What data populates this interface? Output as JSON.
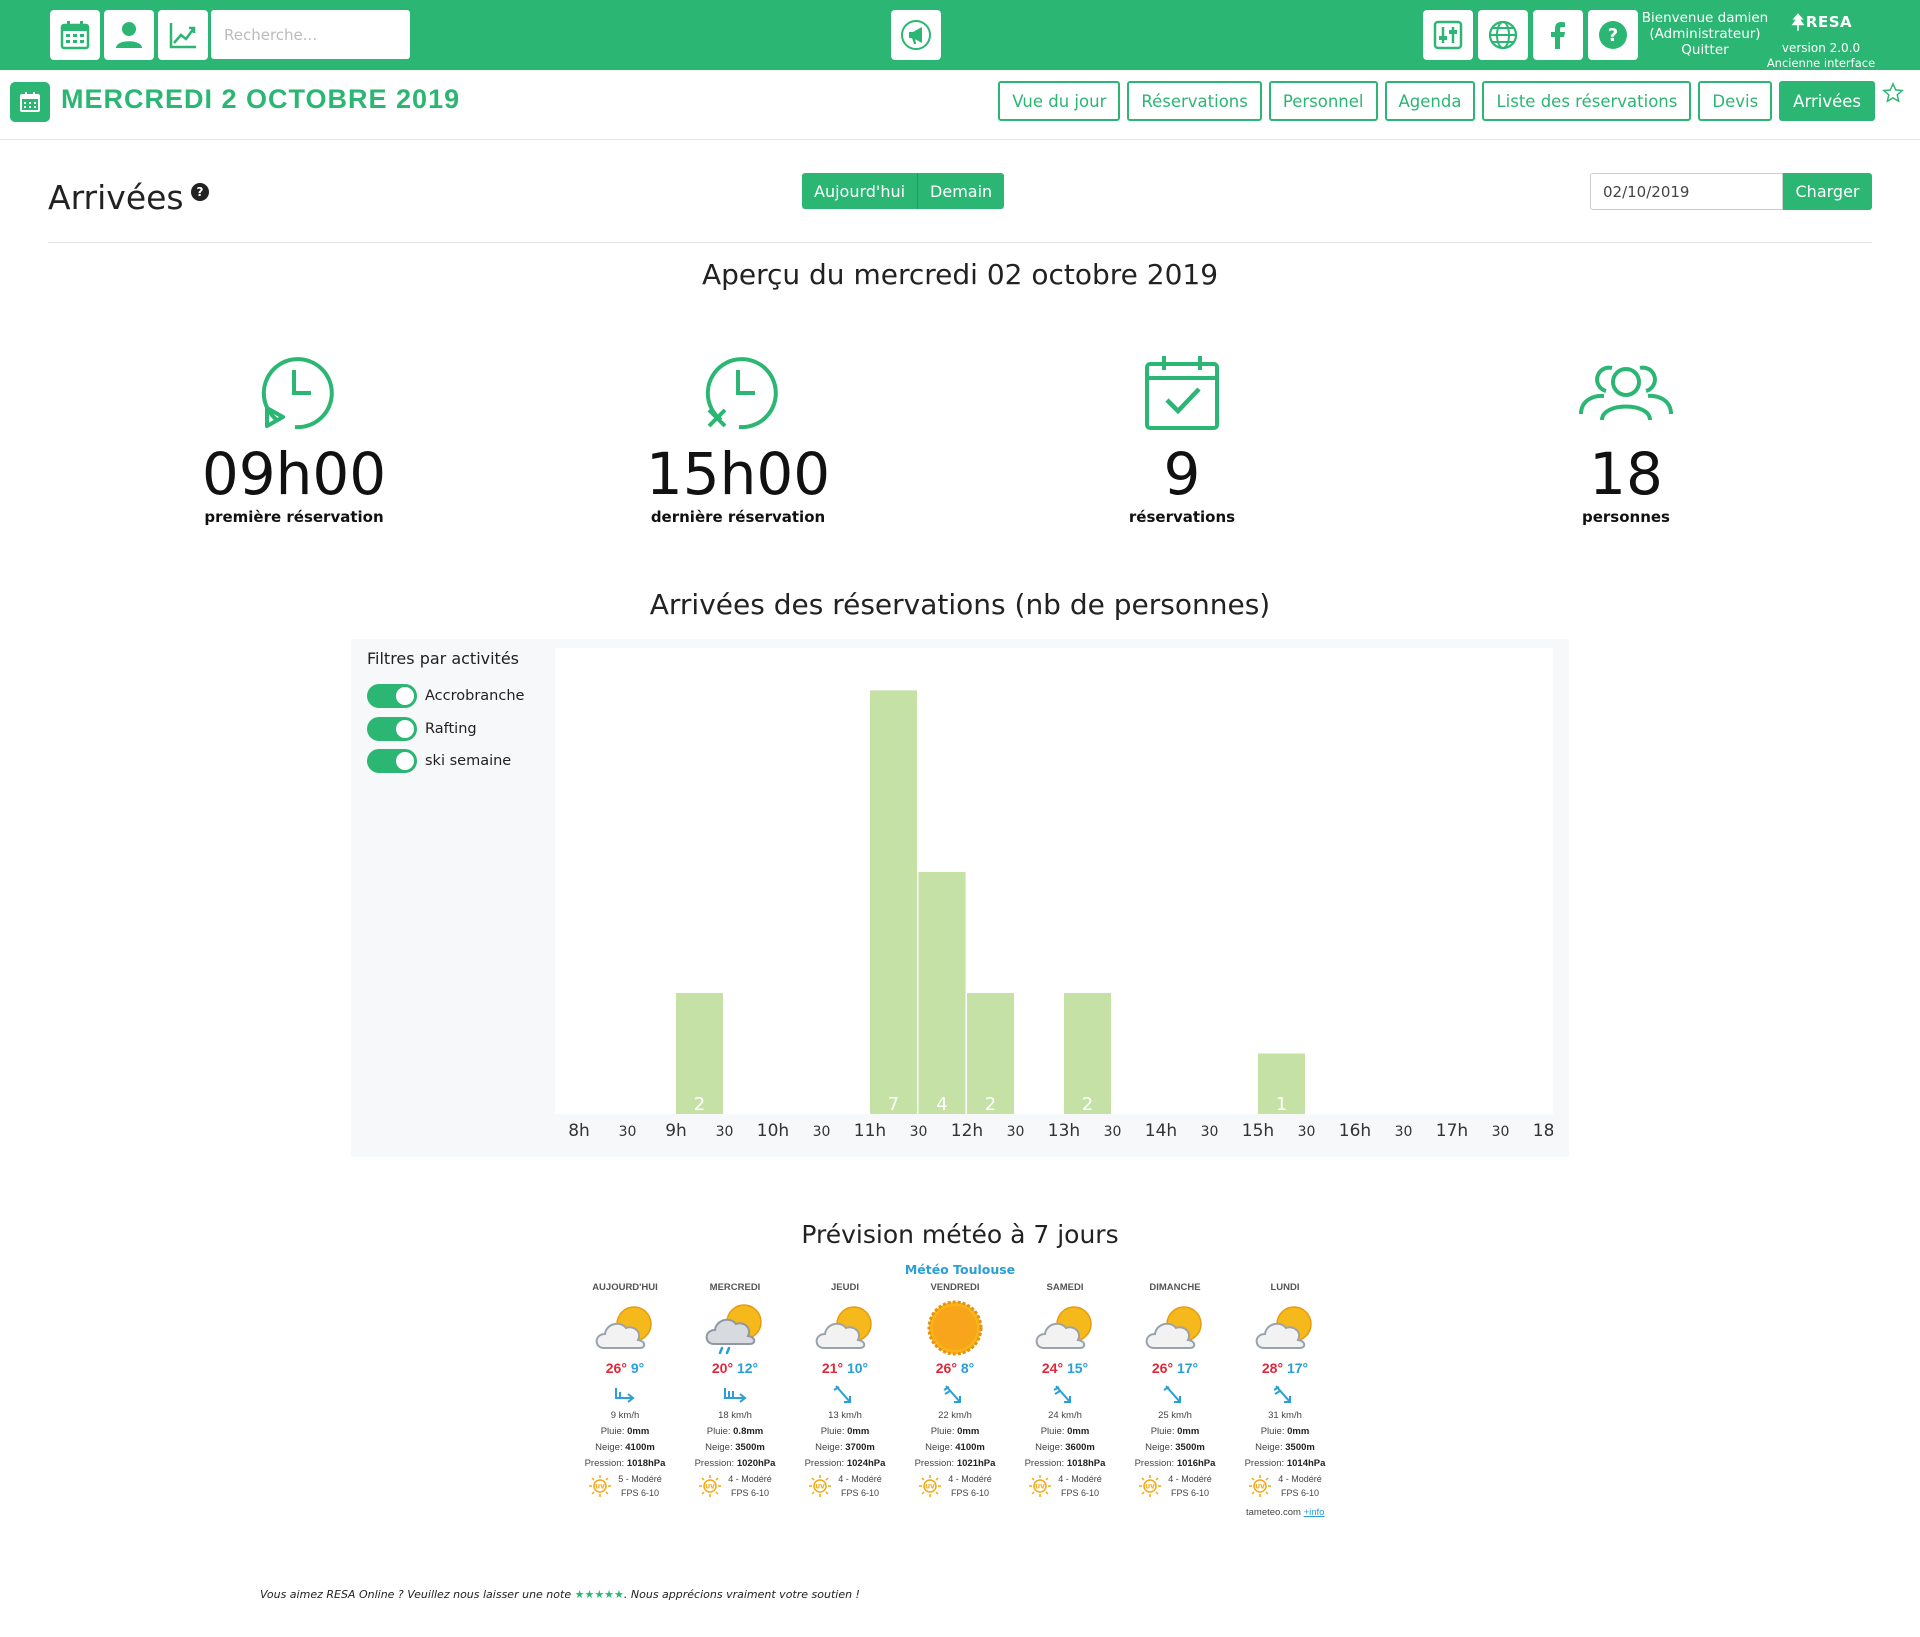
{
  "topbar": {
    "search_placeholder": "Recherche...",
    "welcome_line1": "Bienvenue damien",
    "welcome_line2": "(Administrateur)",
    "logout": "Quitter",
    "brand": "RESA",
    "version": "version 2.0.0",
    "old_ui": "Ancienne interface",
    "accent": "#2bb673"
  },
  "subheader": {
    "date": "MERCREDI 2 OCTOBRE 2019",
    "nav": [
      "Vue du jour",
      "Réservations",
      "Personnel",
      "Agenda",
      "Liste des réservations",
      "Devis",
      "Arrivées"
    ],
    "active": "Arrivées"
  },
  "page": {
    "title": "Arrivées",
    "help": "?",
    "today": "Aujourd'hui",
    "tomorrow": "Demain",
    "date_value": "02/10/2019",
    "load": "Charger"
  },
  "overview": {
    "title": "Aperçu du mercredi 02 octobre 2019",
    "stats": [
      {
        "value": "09h00",
        "label": "première réservation",
        "icon": "clock-start-icon"
      },
      {
        "value": "15h00",
        "label": "dernière réservation",
        "icon": "clock-end-icon"
      },
      {
        "value": "9",
        "label": "réservations",
        "icon": "calendar-check-icon"
      },
      {
        "value": "18",
        "label": "personnes",
        "icon": "people-icon"
      }
    ]
  },
  "filters": {
    "title": "Filtres par activités",
    "items": [
      "Accrobranche",
      "Rafting",
      "ski semaine"
    ]
  },
  "chart_data": {
    "type": "bar",
    "title": "Arrivées des réservations (nb de personnes)",
    "x_slots": [
      "8h",
      "30",
      "9h",
      "30",
      "10h",
      "30",
      "11h",
      "30",
      "12h",
      "30",
      "13h",
      "30",
      "14h",
      "30",
      "15h",
      "30",
      "16h",
      "30",
      "17h",
      "30",
      "18h"
    ],
    "bars": [
      {
        "slot": "9h00",
        "value": 2
      },
      {
        "slot": "11h00",
        "value": 7
      },
      {
        "slot": "11h30",
        "value": 4
      },
      {
        "slot": "12h00",
        "value": 2
      },
      {
        "slot": "13h00",
        "value": 2
      },
      {
        "slot": "15h00",
        "value": 1
      }
    ],
    "ylim": [
      0,
      7.7
    ],
    "bar_color": "#c5e1a5",
    "grid": false
  },
  "meteo": {
    "title": "Prévision météo à 7 jours",
    "city": "Météo Toulouse",
    "days": [
      {
        "name": "AUJOURD'HUI",
        "icon": "partly-cloudy-icon",
        "max": "26°",
        "min": "9°",
        "wind": "9 km/h",
        "rain": "0mm",
        "snow": "4100m",
        "pressure": "1018hPa",
        "uv": "5 - Modéré",
        "fps": "FPS 6-10"
      },
      {
        "name": "MERCREDI",
        "icon": "cloud-rain-icon",
        "max": "20°",
        "min": "12°",
        "wind": "18 km/h",
        "rain": "0.8mm",
        "snow": "3500m",
        "pressure": "1020hPa",
        "uv": "4 - Modéré",
        "fps": "FPS 6-10"
      },
      {
        "name": "JEUDI",
        "icon": "partly-cloudy-icon",
        "max": "21°",
        "min": "10°",
        "wind": "13 km/h",
        "rain": "0mm",
        "snow": "3700m",
        "pressure": "1024hPa",
        "uv": "4 - Modéré",
        "fps": "FPS 6-10"
      },
      {
        "name": "VENDREDI",
        "icon": "sun-icon",
        "max": "26°",
        "min": "8°",
        "wind": "22 km/h",
        "rain": "0mm",
        "snow": "4100m",
        "pressure": "1021hPa",
        "uv": "4 - Modéré",
        "fps": "FPS 6-10"
      },
      {
        "name": "SAMEDI",
        "icon": "partly-cloudy-icon",
        "max": "24°",
        "min": "15°",
        "wind": "24 km/h",
        "rain": "0mm",
        "snow": "3600m",
        "pressure": "1018hPa",
        "uv": "4 - Modéré",
        "fps": "FPS 6-10"
      },
      {
        "name": "DIMANCHE",
        "icon": "partly-cloudy-icon",
        "max": "26°",
        "min": "17°",
        "wind": "25 km/h",
        "rain": "0mm",
        "snow": "3500m",
        "pressure": "1016hPa",
        "uv": "4 - Modéré",
        "fps": "FPS 6-10"
      },
      {
        "name": "LUNDI",
        "icon": "partly-cloudy-icon",
        "max": "28°",
        "min": "17°",
        "wind": "31 km/h",
        "rain": "0mm",
        "snow": "3500m",
        "pressure": "1014hPa",
        "uv": "4 - Modéré",
        "fps": "FPS 6-10"
      }
    ],
    "labels": {
      "rain": "Pluie:",
      "snow": "Neige:",
      "pressure": "Pression:"
    },
    "source": "tameteo.com",
    "info": "+info"
  },
  "footer": {
    "before": "Vous aimez RESA Online ? Veuillez nous laisser une note ",
    "stars": "★★★★★",
    "after": ". Nous apprécions vraiment votre soutien !"
  }
}
